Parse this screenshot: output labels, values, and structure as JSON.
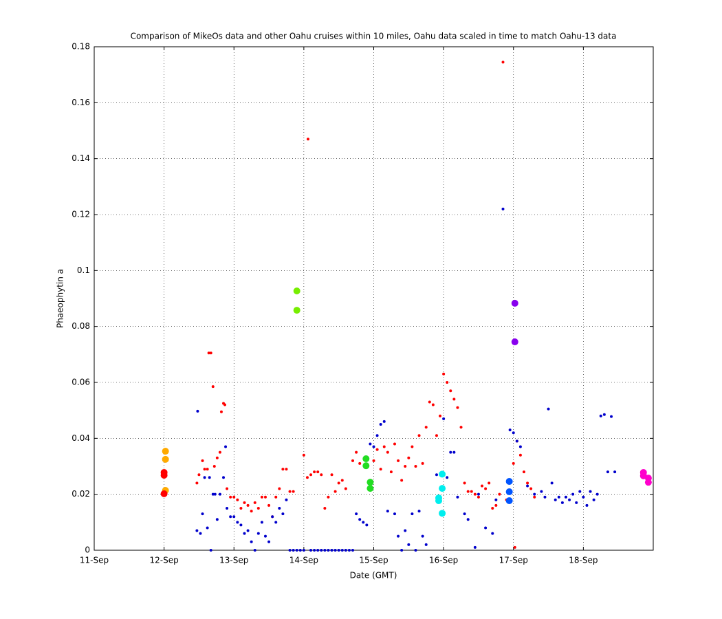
{
  "chart_data": {
    "type": "scatter",
    "title": "Comparison of MikeOs data and other Oahu cruises within 10 miles, Oahu data scaled in time to match Oahu-13 data",
    "xlabel": "Date (GMT)",
    "ylabel": "Phaeophytin a",
    "xlim": [
      11,
      19
    ],
    "ylim": [
      0,
      0.18
    ],
    "xticks": [
      {
        "value": 11,
        "label": "11-Sep"
      },
      {
        "value": 12,
        "label": "12-Sep"
      },
      {
        "value": 13,
        "label": "13-Sep"
      },
      {
        "value": 14,
        "label": "14-Sep"
      },
      {
        "value": 15,
        "label": "15-Sep"
      },
      {
        "value": 16,
        "label": "16-Sep"
      },
      {
        "value": 17,
        "label": "17-Sep"
      },
      {
        "value": 18,
        "label": "18-Sep"
      }
    ],
    "yticks": [
      0,
      0.02,
      0.04,
      0.06,
      0.08,
      0.1,
      0.12,
      0.14,
      0.16,
      0.18
    ],
    "grid": true,
    "series": [
      {
        "color": "#ff0000",
        "marker_size": 2,
        "x": [
          12.47,
          12.5,
          12.55,
          12.58,
          12.62,
          12.64,
          12.67,
          12.7,
          12.72,
          12.76,
          12.8,
          12.82,
          12.85,
          12.87,
          12.9,
          12.95,
          13.0,
          13.05,
          13.1,
          13.15,
          13.2,
          13.25,
          13.3,
          13.35,
          13.4,
          13.45,
          13.5,
          13.55,
          13.6,
          13.65,
          13.7,
          13.75,
          13.8,
          13.85,
          14.0,
          14.05,
          14.1,
          14.06,
          14.15,
          14.2,
          14.25,
          14.3,
          14.35,
          14.4,
          14.45,
          14.5,
          14.55,
          14.6,
          14.7,
          14.75,
          14.8,
          15.0,
          15.05,
          15.1,
          15.15,
          15.2,
          15.25,
          15.3,
          15.35,
          15.4,
          15.45,
          15.5,
          15.55,
          15.6,
          15.65,
          15.7,
          15.75,
          15.8,
          15.85,
          15.9,
          15.95,
          16.0,
          16.05,
          16.1,
          16.15,
          16.2,
          16.25,
          16.3,
          16.35,
          16.4,
          16.45,
          16.5,
          16.55,
          16.6,
          16.65,
          16.7,
          16.75,
          16.8,
          16.85,
          16.9,
          16.95,
          17.0,
          17.02,
          17.05,
          17.1,
          17.15,
          17.2,
          17.25,
          17.3
        ],
        "values": [
          0.024,
          0.027,
          0.032,
          0.029,
          0.029,
          0.0705,
          0.0705,
          0.0585,
          0.03,
          0.033,
          0.035,
          0.0495,
          0.0525,
          0.052,
          0.022,
          0.019,
          0.019,
          0.018,
          0.015,
          0.017,
          0.016,
          0.014,
          0.017,
          0.015,
          0.019,
          0.019,
          0.016,
          0.012,
          0.019,
          0.022,
          0.029,
          0.029,
          0.021,
          0.021,
          0.034,
          0.026,
          0.027,
          0.147,
          0.028,
          0.028,
          0.027,
          0.015,
          0.019,
          0.027,
          0.021,
          0.024,
          0.025,
          0.022,
          0.032,
          0.035,
          0.031,
          0.032,
          0.036,
          0.029,
          0.037,
          0.035,
          0.028,
          0.038,
          0.032,
          0.025,
          0.03,
          0.033,
          0.037,
          0.03,
          0.041,
          0.031,
          0.044,
          0.053,
          0.052,
          0.041,
          0.048,
          0.063,
          0.06,
          0.057,
          0.054,
          0.051,
          0.044,
          0.024,
          0.021,
          0.021,
          0.02,
          0.019,
          0.023,
          0.022,
          0.024,
          0.015,
          0.016,
          0.02,
          0.1745,
          0.018,
          0.021,
          0.031,
          0.001,
          0.039,
          0.034,
          0.028,
          0.024,
          0.022,
          0.019
        ]
      },
      {
        "color": "#0000cc",
        "marker_size": 2,
        "x": [
          12.47,
          12.48,
          12.52,
          12.55,
          12.58,
          12.62,
          12.65,
          12.67,
          12.7,
          12.73,
          12.76,
          12.8,
          12.85,
          12.88,
          12.9,
          12.95,
          13.0,
          13.05,
          13.1,
          13.15,
          13.2,
          13.25,
          13.3,
          13.35,
          13.4,
          13.45,
          13.5,
          13.55,
          13.6,
          13.65,
          13.7,
          13.75,
          13.8,
          13.85,
          13.9,
          13.95,
          14.0,
          14.1,
          14.15,
          14.2,
          14.25,
          14.3,
          14.35,
          14.4,
          14.45,
          14.5,
          14.55,
          14.6,
          14.65,
          14.7,
          14.75,
          14.8,
          14.85,
          14.9,
          14.95,
          15.0,
          15.05,
          15.1,
          15.15,
          15.2,
          15.3,
          15.35,
          15.4,
          15.45,
          15.5,
          15.55,
          15.6,
          15.65,
          15.7,
          15.75,
          15.9,
          16.0,
          16.05,
          16.1,
          16.15,
          16.2,
          16.3,
          16.35,
          16.45,
          16.5,
          16.6,
          16.7,
          16.75,
          16.85,
          16.95,
          17.0,
          17.05,
          17.1,
          17.2,
          17.3,
          17.4,
          17.45,
          17.5,
          17.55,
          17.6,
          17.65,
          17.7,
          17.75,
          17.8,
          17.85,
          17.9,
          17.95,
          18.0,
          18.05,
          18.1,
          18.15,
          18.2,
          18.25,
          18.3,
          18.35,
          18.4,
          18.45
        ],
        "values": [
          0.007,
          0.0497,
          0.006,
          0.013,
          0.026,
          0.008,
          0.026,
          0,
          0.02,
          0.02,
          0.011,
          0.02,
          0.026,
          0.037,
          0.015,
          0.012,
          0.012,
          0.01,
          0.009,
          0.006,
          0.007,
          0.003,
          0,
          0.006,
          0.01,
          0.005,
          0.003,
          0.012,
          0.01,
          0.015,
          0.013,
          0.018,
          0,
          0,
          0,
          0,
          0,
          0,
          0,
          0,
          0,
          0,
          0,
          0,
          0,
          0,
          0,
          0,
          0,
          0,
          0.013,
          0.011,
          0.01,
          0.009,
          0.038,
          0.037,
          0.041,
          0.045,
          0.046,
          0.014,
          0.013,
          0.005,
          0,
          0.007,
          0.002,
          0.013,
          0,
          0.014,
          0.005,
          0.002,
          0.027,
          0.047,
          0.026,
          0.035,
          0.035,
          0.019,
          0.013,
          0.011,
          0.001,
          0.02,
          0.008,
          0.006,
          0.018,
          0.122,
          0.043,
          0.042,
          0.039,
          0.037,
          0.023,
          0.02,
          0.021,
          0.019,
          0.0505,
          0.024,
          0.018,
          0.019,
          0.017,
          0.019,
          0.018,
          0.02,
          0.017,
          0.021,
          0.019,
          0.016,
          0.021,
          0.018,
          0.02,
          0.048,
          0.0485,
          0.028,
          0.0478,
          0.028
        ]
      },
      {
        "color": "#ffaa00",
        "marker_size": 5,
        "x": [
          12.02,
          12.02,
          12.02
        ],
        "values": [
          0.0354,
          0.0325,
          0.0214
        ]
      },
      {
        "color": "#ff0000",
        "marker_size": 5,
        "x": [
          12.0,
          12.0,
          12.0
        ],
        "values": [
          0.0278,
          0.0268,
          0.0202
        ]
      },
      {
        "color": "#77ee00",
        "marker_size": 5,
        "x": [
          13.9,
          13.9
        ],
        "values": [
          0.0927,
          0.0858
        ]
      },
      {
        "color": "#22dd22",
        "marker_size": 5,
        "x": [
          14.89,
          14.89,
          14.95,
          14.95
        ],
        "values": [
          0.0327,
          0.0302,
          0.0243,
          0.0221
        ]
      },
      {
        "color": "#00eeee",
        "marker_size": 5,
        "x": [
          15.98,
          15.93,
          15.93,
          15.98,
          15.98
        ],
        "values": [
          0.0272,
          0.0187,
          0.0177,
          0.0221,
          0.0132
        ]
      },
      {
        "color": "#0055ff",
        "marker_size": 5,
        "x": [
          16.94,
          16.94,
          16.94
        ],
        "values": [
          0.0246,
          0.0209,
          0.0177
        ]
      },
      {
        "color": "#8800ee",
        "marker_size": 5,
        "x": [
          17.02,
          17.02
        ],
        "values": [
          0.0883,
          0.0745
        ]
      },
      {
        "color": "#ff00cc",
        "marker_size": 5,
        "x": [
          18.86,
          18.86,
          18.93,
          18.93
        ],
        "values": [
          0.0278,
          0.0266,
          0.0258,
          0.0243
        ]
      }
    ]
  }
}
